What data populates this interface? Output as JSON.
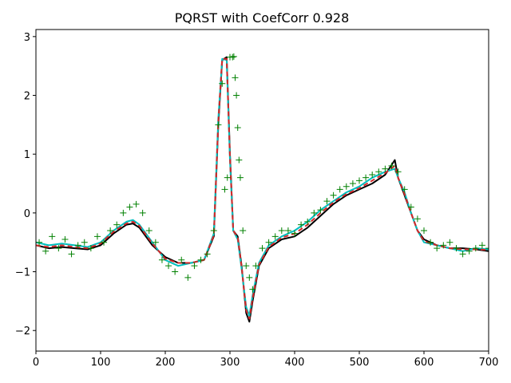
{
  "chart_data": {
    "type": "line",
    "title": "PQRST with CoefCorr 0.928",
    "xlabel": "",
    "ylabel": "",
    "xlim": [
      0,
      700
    ],
    "ylim": [
      -2.35,
      3.12
    ],
    "grid": false,
    "x_ticks": [
      0,
      100,
      200,
      300,
      400,
      500,
      600,
      700
    ],
    "x_tick_labels": [
      "0",
      "100",
      "200",
      "300",
      "400",
      "500",
      "600",
      "700"
    ],
    "y_ticks": [
      -2,
      -1,
      0,
      1,
      2,
      3
    ],
    "y_tick_labels": [
      "−2",
      "−1",
      "0",
      "1",
      "2",
      "3"
    ],
    "colors": {
      "black_series": "#000000",
      "cyan_series": "#00bfbf",
      "red_dashed_series": "#d62728",
      "green_markers": "#008000"
    },
    "series": [
      {
        "style": "black-solid",
        "x": [
          0,
          20,
          40,
          60,
          80,
          100,
          120,
          140,
          150,
          160,
          180,
          200,
          220,
          240,
          260,
          275,
          282,
          288,
          295,
          300,
          305,
          312,
          318,
          325,
          330,
          335,
          345,
          360,
          380,
          400,
          420,
          440,
          460,
          480,
          500,
          520,
          540,
          555,
          560,
          570,
          580,
          590,
          600,
          620,
          640,
          660,
          680,
          700
        ],
        "y": [
          -0.55,
          -0.6,
          -0.58,
          -0.6,
          -0.62,
          -0.55,
          -0.35,
          -0.2,
          -0.18,
          -0.25,
          -0.55,
          -0.75,
          -0.85,
          -0.85,
          -0.8,
          -0.4,
          1.5,
          2.6,
          2.65,
          1.0,
          -0.3,
          -0.4,
          -0.9,
          -1.7,
          -1.85,
          -1.5,
          -0.9,
          -0.6,
          -0.45,
          -0.4,
          -0.25,
          -0.05,
          0.15,
          0.3,
          0.4,
          0.5,
          0.65,
          0.9,
          0.6,
          0.3,
          0.0,
          -0.3,
          -0.45,
          -0.55,
          -0.6,
          -0.6,
          -0.62,
          -0.65
        ]
      },
      {
        "style": "cyan-solid",
        "x": [
          0,
          20,
          40,
          60,
          80,
          100,
          120,
          140,
          150,
          160,
          180,
          200,
          220,
          240,
          260,
          275,
          282,
          288,
          295,
          300,
          305,
          312,
          318,
          325,
          330,
          335,
          345,
          360,
          380,
          400,
          420,
          440,
          460,
          480,
          500,
          520,
          540,
          555,
          560,
          570,
          580,
          590,
          600,
          620,
          640,
          660,
          680,
          700
        ],
        "y": [
          -0.5,
          -0.55,
          -0.52,
          -0.55,
          -0.58,
          -0.5,
          -0.3,
          -0.15,
          -0.12,
          -0.2,
          -0.5,
          -0.8,
          -0.9,
          -0.85,
          -0.8,
          -0.35,
          1.6,
          2.62,
          2.6,
          0.9,
          -0.3,
          -0.45,
          -0.95,
          -1.6,
          -1.75,
          -1.4,
          -0.85,
          -0.55,
          -0.4,
          -0.3,
          -0.15,
          0.05,
          0.2,
          0.35,
          0.45,
          0.6,
          0.7,
          0.75,
          0.6,
          0.35,
          0.0,
          -0.3,
          -0.5,
          -0.55,
          -0.6,
          -0.65,
          -0.6,
          -0.62
        ]
      },
      {
        "style": "red-dashed",
        "x": [
          0,
          20,
          40,
          60,
          80,
          100,
          120,
          140,
          150,
          160,
          180,
          200,
          220,
          240,
          260,
          275,
          282,
          288,
          295,
          300,
          305,
          312,
          318,
          325,
          330,
          335,
          345,
          360,
          380,
          400,
          420,
          440,
          460,
          480,
          500,
          520,
          540,
          555,
          560,
          570,
          580,
          590,
          600,
          620,
          640,
          660,
          680,
          700
        ],
        "y": [
          -0.55,
          -0.58,
          -0.55,
          -0.58,
          -0.6,
          -0.52,
          -0.32,
          -0.18,
          -0.15,
          -0.22,
          -0.52,
          -0.78,
          -0.85,
          -0.85,
          -0.8,
          -0.38,
          1.55,
          2.62,
          2.62,
          0.95,
          -0.3,
          -0.42,
          -0.92,
          -1.65,
          -1.8,
          -1.45,
          -0.88,
          -0.58,
          -0.42,
          -0.35,
          -0.2,
          0.0,
          0.18,
          0.32,
          0.42,
          0.55,
          0.68,
          0.8,
          0.6,
          0.32,
          0.0,
          -0.3,
          -0.48,
          -0.55,
          -0.6,
          -0.62,
          -0.62,
          -0.63
        ]
      },
      {
        "style": "green-plus-markers",
        "x": [
          5,
          15,
          25,
          35,
          45,
          55,
          65,
          75,
          85,
          95,
          105,
          115,
          125,
          135,
          145,
          155,
          165,
          175,
          185,
          195,
          205,
          215,
          225,
          235,
          245,
          255,
          265,
          275,
          282,
          288,
          292,
          296,
          300,
          304,
          306,
          308,
          310,
          312,
          314,
          316,
          320,
          325,
          330,
          335,
          340,
          350,
          360,
          370,
          380,
          390,
          400,
          410,
          420,
          430,
          440,
          450,
          460,
          470,
          480,
          490,
          500,
          510,
          520,
          530,
          540,
          550,
          560,
          570,
          580,
          590,
          600,
          610,
          620,
          630,
          640,
          650,
          660,
          670,
          680,
          690,
          700
        ],
        "y": [
          -0.5,
          -0.65,
          -0.4,
          -0.6,
          -0.45,
          -0.7,
          -0.55,
          -0.5,
          -0.6,
          -0.4,
          -0.5,
          -0.3,
          -0.2,
          0.0,
          0.1,
          0.15,
          0.0,
          -0.3,
          -0.5,
          -0.8,
          -0.9,
          -1.0,
          -0.8,
          -1.1,
          -0.9,
          -0.8,
          -0.7,
          -0.3,
          1.5,
          2.2,
          0.4,
          0.6,
          2.65,
          2.65,
          2.66,
          2.3,
          2.0,
          1.45,
          0.9,
          0.6,
          -0.3,
          -0.9,
          -1.1,
          -1.3,
          -0.9,
          -0.6,
          -0.5,
          -0.4,
          -0.3,
          -0.3,
          -0.35,
          -0.2,
          -0.15,
          0.0,
          0.05,
          0.2,
          0.3,
          0.4,
          0.45,
          0.5,
          0.55,
          0.6,
          0.65,
          0.7,
          0.75,
          0.8,
          0.7,
          0.4,
          0.1,
          -0.1,
          -0.3,
          -0.5,
          -0.6,
          -0.55,
          -0.5,
          -0.6,
          -0.7,
          -0.65,
          -0.6,
          -0.55,
          -0.6
        ]
      }
    ]
  }
}
